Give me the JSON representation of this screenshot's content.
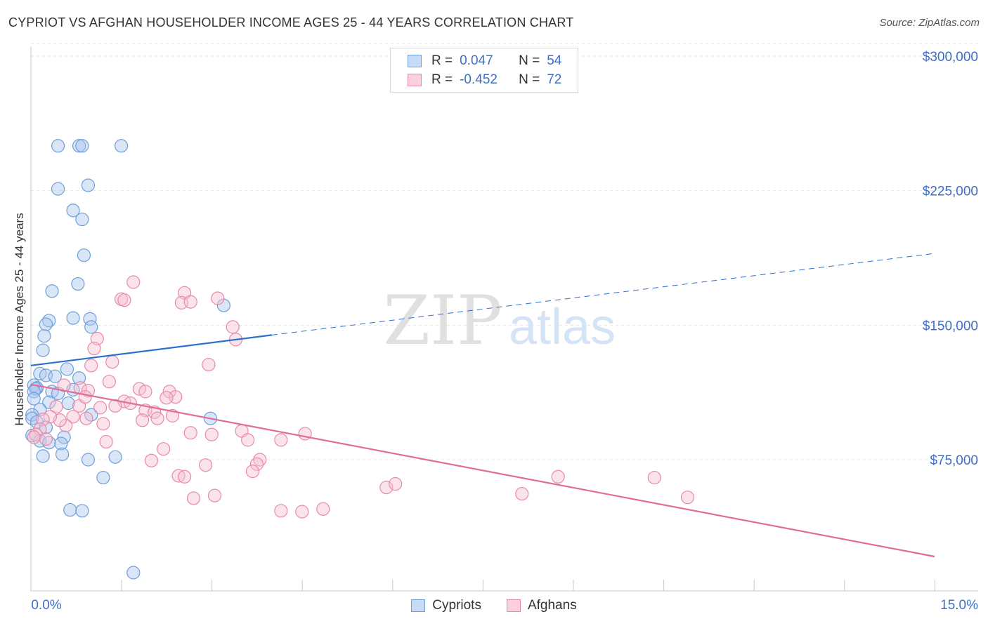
{
  "title": "CYPRIOT VS AFGHAN HOUSEHOLDER INCOME AGES 25 - 44 YEARS CORRELATION CHART",
  "source": "Source: ZipAtlas.com",
  "watermark": {
    "zip": "ZIP",
    "atlas": "atlas"
  },
  "legend": {
    "rows": [
      {
        "r_label": "R =",
        "r_value": "0.047",
        "n_label": "N =",
        "n_value": "54",
        "color": "#a9c8f0",
        "border": "#6f9fd8"
      },
      {
        "r_label": "R =",
        "r_value": "-0.452",
        "n_label": "N =",
        "n_value": "72",
        "color": "#f7c0d2",
        "border": "#e68aa9"
      }
    ]
  },
  "bottom_legend": [
    "Cypriots",
    "Afghans"
  ],
  "chart_data": {
    "type": "scatter",
    "title": "CYPRIOT VS AFGHAN HOUSEHOLDER INCOME AGES 25 - 44 YEARS CORRELATION CHART",
    "xlabel": "",
    "ylabel": "Householder Income Ages 25 - 44 years",
    "xlim": [
      0,
      15
    ],
    "ylim": [
      0,
      315000
    ],
    "x_tick_labels": [
      "0.0%",
      "15.0%"
    ],
    "y_ticks": [
      75000,
      150000,
      225000,
      300000
    ],
    "y_tick_labels": [
      "$75,000",
      "$150,000",
      "$225,000",
      "$300,000"
    ],
    "grid": true,
    "legend_position": "top-center",
    "series": [
      {
        "name": "Cypriots",
        "color": "#a9c8f0",
        "stroke": "#6f9fd8",
        "trend": {
          "x": [
            0,
            4.0
          ],
          "y": [
            127500,
            144500
          ],
          "dashed_to_x": 15.0,
          "dashed_to_y": 190000,
          "color": "#2b6fcf"
        },
        "points": [
          [
            0.45,
            250000
          ],
          [
            0.8,
            250000
          ],
          [
            0.85,
            250000
          ],
          [
            1.5,
            250000
          ],
          [
            0.45,
            226000
          ],
          [
            0.95,
            228000
          ],
          [
            0.7,
            214000
          ],
          [
            0.85,
            209000
          ],
          [
            0.88,
            189000
          ],
          [
            0.78,
            173000
          ],
          [
            0.35,
            169000
          ],
          [
            0.3,
            152500
          ],
          [
            0.25,
            150500
          ],
          [
            0.7,
            154000
          ],
          [
            0.98,
            153500
          ],
          [
            1.0,
            149000
          ],
          [
            0.22,
            144000
          ],
          [
            0.2,
            136000
          ],
          [
            3.2,
            161000
          ],
          [
            0.6,
            125500
          ],
          [
            0.15,
            123000
          ],
          [
            0.25,
            122000
          ],
          [
            0.4,
            121500
          ],
          [
            0.8,
            120500
          ],
          [
            0.05,
            116500
          ],
          [
            0.1,
            115000
          ],
          [
            0.08,
            114500
          ],
          [
            0.05,
            113000
          ],
          [
            0.35,
            113000
          ],
          [
            0.45,
            112000
          ],
          [
            0.7,
            114000
          ],
          [
            0.3,
            107000
          ],
          [
            0.62,
            106500
          ],
          [
            0.05,
            109000
          ],
          [
            0.15,
            103000
          ],
          [
            0.02,
            100000
          ],
          [
            0.02,
            98000
          ],
          [
            0.1,
            96000
          ],
          [
            0.25,
            93000
          ],
          [
            0.02,
            88500
          ],
          [
            0.55,
            87500
          ],
          [
            0.15,
            85500
          ],
          [
            0.3,
            84500
          ],
          [
            0.5,
            84000
          ],
          [
            0.2,
            77000
          ],
          [
            0.52,
            78000
          ],
          [
            0.95,
            75000
          ],
          [
            1.4,
            76500
          ],
          [
            1.2,
            65000
          ],
          [
            0.65,
            47000
          ],
          [
            0.85,
            46500
          ],
          [
            1.7,
            12000
          ],
          [
            2.98,
            98000
          ],
          [
            1.0,
            100000
          ]
        ]
      },
      {
        "name": "Afghans",
        "color": "#f7c0d2",
        "stroke": "#e68aa9",
        "trend": {
          "x": [
            0,
            15.0
          ],
          "y": [
            117000,
            21000
          ],
          "color": "#e06c9a"
        },
        "points": [
          [
            1.7,
            174000
          ],
          [
            2.55,
            168000
          ],
          [
            3.1,
            165000
          ],
          [
            1.5,
            164500
          ],
          [
            1.55,
            164000
          ],
          [
            2.5,
            162500
          ],
          [
            2.65,
            163000
          ],
          [
            3.35,
            149000
          ],
          [
            1.1,
            142500
          ],
          [
            3.4,
            142000
          ],
          [
            1.05,
            137000
          ],
          [
            1.35,
            129500
          ],
          [
            2.95,
            128000
          ],
          [
            1.0,
            127500
          ],
          [
            1.3,
            118500
          ],
          [
            0.55,
            116500
          ],
          [
            0.82,
            115000
          ],
          [
            0.95,
            113500
          ],
          [
            1.8,
            114500
          ],
          [
            1.9,
            113000
          ],
          [
            2.3,
            113000
          ],
          [
            2.4,
            110000
          ],
          [
            2.25,
            109500
          ],
          [
            1.55,
            107500
          ],
          [
            1.65,
            106500
          ],
          [
            1.4,
            105000
          ],
          [
            1.15,
            104000
          ],
          [
            0.8,
            105000
          ],
          [
            0.42,
            104500
          ],
          [
            1.9,
            102500
          ],
          [
            2.05,
            101500
          ],
          [
            2.35,
            99500
          ],
          [
            2.1,
            98000
          ],
          [
            1.85,
            97000
          ],
          [
            0.7,
            99000
          ],
          [
            0.92,
            98000
          ],
          [
            1.2,
            95000
          ],
          [
            0.58,
            94000
          ],
          [
            0.48,
            97000
          ],
          [
            0.32,
            99000
          ],
          [
            0.2,
            97500
          ],
          [
            0.15,
            92000
          ],
          [
            0.08,
            89000
          ],
          [
            0.05,
            87500
          ],
          [
            0.25,
            86500
          ],
          [
            2.65,
            90000
          ],
          [
            3.0,
            89000
          ],
          [
            3.5,
            91000
          ],
          [
            3.6,
            86000
          ],
          [
            4.15,
            86000
          ],
          [
            4.55,
            89500
          ],
          [
            1.25,
            85000
          ],
          [
            2.2,
            81000
          ],
          [
            2.0,
            74500
          ],
          [
            2.9,
            72000
          ],
          [
            3.8,
            75000
          ],
          [
            3.75,
            72500
          ],
          [
            3.68,
            68500
          ],
          [
            2.45,
            66000
          ],
          [
            2.55,
            65500
          ],
          [
            2.7,
            53500
          ],
          [
            3.05,
            55000
          ],
          [
            5.9,
            59500
          ],
          [
            6.05,
            61500
          ],
          [
            8.75,
            65500
          ],
          [
            8.15,
            56000
          ],
          [
            10.35,
            65000
          ],
          [
            10.9,
            54000
          ],
          [
            4.15,
            46500
          ],
          [
            4.5,
            46000
          ],
          [
            4.85,
            47500
          ],
          [
            0.9,
            110000
          ]
        ]
      }
    ]
  }
}
